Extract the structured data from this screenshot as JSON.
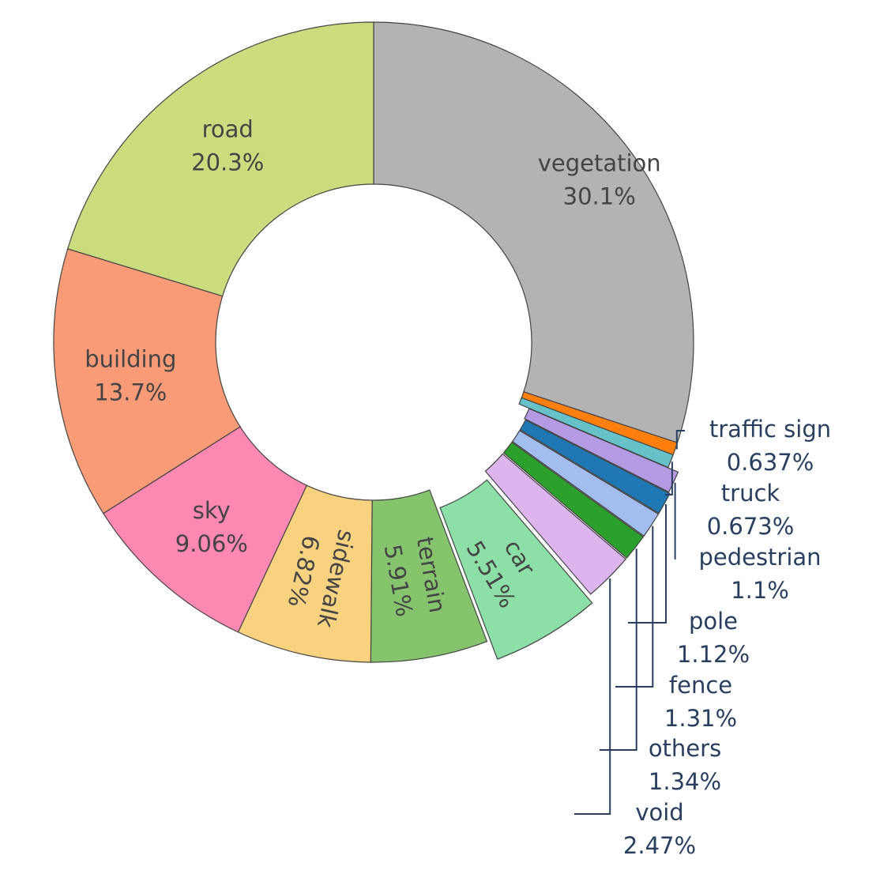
{
  "chart_data": {
    "type": "pie",
    "hole": true,
    "legend": "none",
    "slices": [
      {
        "label": "vegetation",
        "percent_text": "30.1%",
        "value": 30.1,
        "color": "#b3b3b3"
      },
      {
        "label": "traffic sign",
        "percent_text": "0.637%",
        "value": 0.637,
        "color": "#ff7f0e"
      },
      {
        "label": "truck",
        "percent_text": "0.673%",
        "value": 0.673,
        "color": "#66c2c8"
      },
      {
        "label": "pedestrian",
        "percent_text": "1.1%",
        "value": 1.1,
        "color": "#b39ae3"
      },
      {
        "label": "pole",
        "percent_text": "1.12%",
        "value": 1.12,
        "color": "#1f77b4"
      },
      {
        "label": "fence",
        "percent_text": "1.31%",
        "value": 1.31,
        "color": "#a3bdf0"
      },
      {
        "label": "others",
        "percent_text": "1.34%",
        "value": 1.34,
        "color": "#2ca02c"
      },
      {
        "label": "void",
        "percent_text": "2.47%",
        "value": 2.47,
        "color": "#dcb5ef"
      },
      {
        "label": "car",
        "percent_text": "5.51%",
        "value": 5.51,
        "color": "#8ddfa8"
      },
      {
        "label": "terrain",
        "percent_text": "5.91%",
        "value": 5.91,
        "color": "#85c46c"
      },
      {
        "label": "sidewalk",
        "percent_text": "6.82%",
        "value": 6.82,
        "color": "#f8d27e"
      },
      {
        "label": "sky",
        "percent_text": "9.06%",
        "value": 9.06,
        "color": "#fd88b1"
      },
      {
        "label": "building",
        "percent_text": "13.7%",
        "value": 13.7,
        "color": "#f99b76"
      },
      {
        "label": "road",
        "percent_text": "20.3%",
        "value": 20.3,
        "color": "#cbdc7e"
      }
    ]
  }
}
